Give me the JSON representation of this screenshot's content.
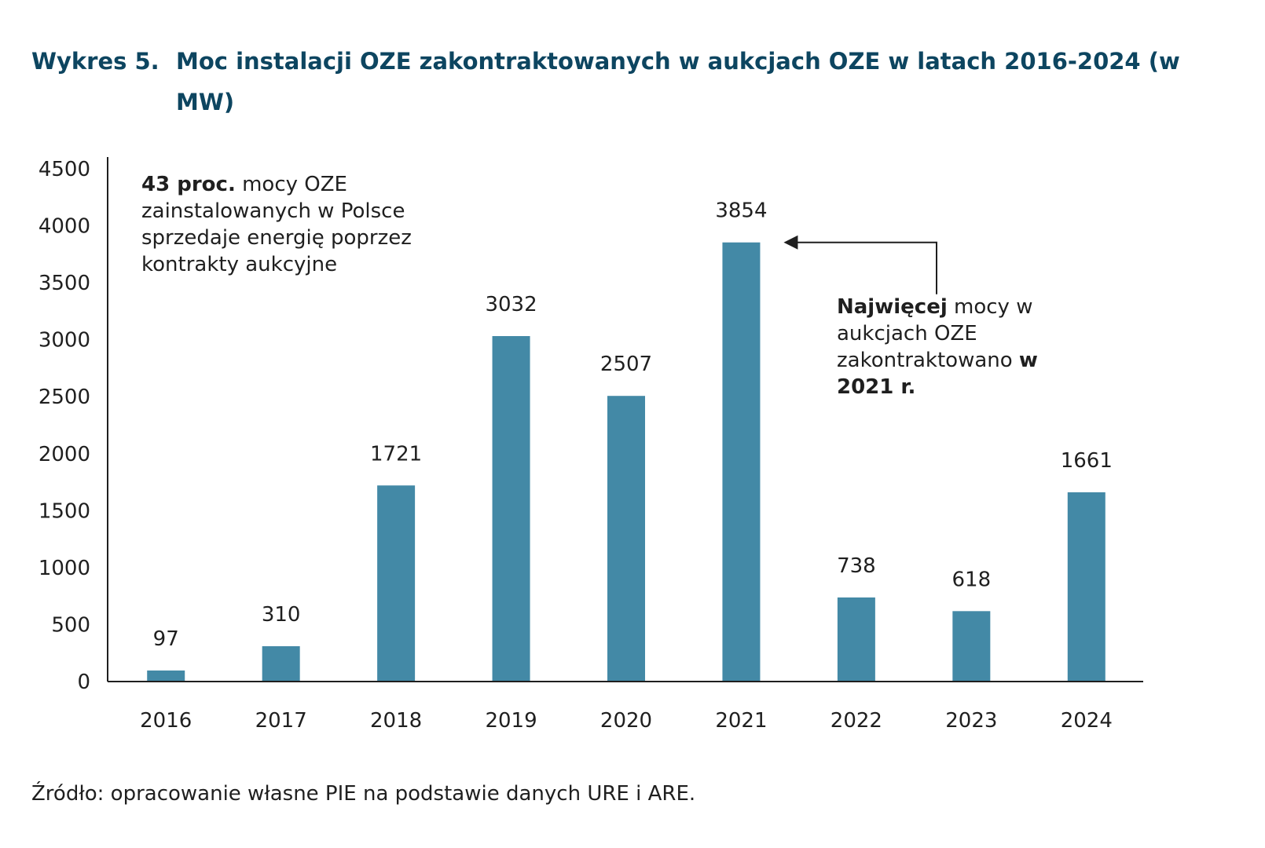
{
  "title": {
    "label": "Wykres 5.",
    "text": "Moc instalacji OZE zakontraktowanych w aukcjach OZE w latach 2016-2024 (w MW)"
  },
  "annotations": {
    "left": {
      "bold": "43 proc.",
      "rest": " mocy OZE zainstalowanych w Polsce sprzedaje energię poprzez kontrakty aukcyjne"
    },
    "right": {
      "bold": "Najwięcej",
      "rest": " mocy w aukcjach OZE zakontraktowano ",
      "bold2": "w 2021 r."
    }
  },
  "source": "Źródło: opracowanie własne PIE na podstawie danych URE i ARE.",
  "colors": {
    "bar": "#4389a6",
    "title": "#0d4560",
    "axis": "#1f1f1f"
  },
  "chart_data": {
    "type": "bar",
    "categories": [
      "2016",
      "2017",
      "2018",
      "2019",
      "2020",
      "2021",
      "2022",
      "2023",
      "2024"
    ],
    "values": [
      97,
      310,
      1721,
      3032,
      2507,
      3854,
      738,
      618,
      1661
    ],
    "yticks": [
      0,
      500,
      1000,
      1500,
      2000,
      2500,
      3000,
      3500,
      4000,
      4500
    ],
    "ylim": [
      0,
      4500
    ],
    "data_labels": true,
    "grid": false,
    "legend": "none",
    "title": "Moc instalacji OZE zakontraktowanych w aukcjach OZE w latach 2016-2024 (w MW)",
    "xlabel": "",
    "ylabel": ""
  }
}
